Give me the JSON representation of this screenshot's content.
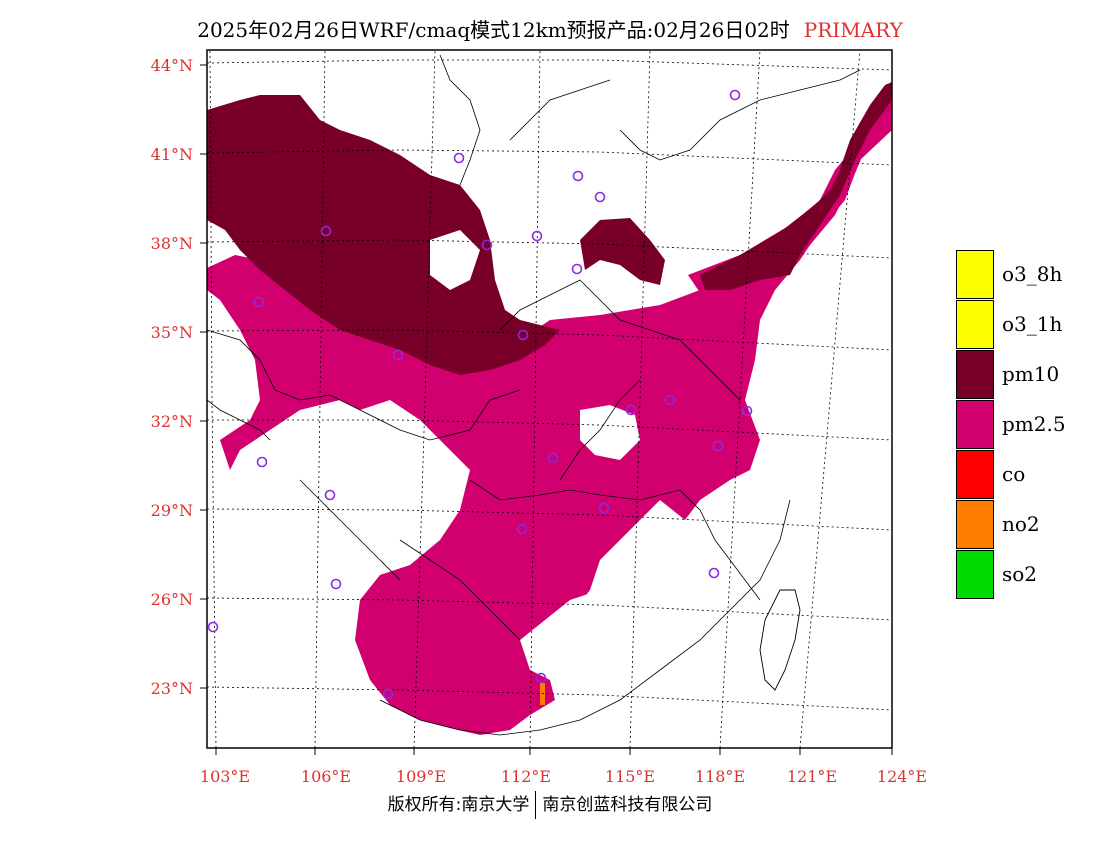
{
  "header": {
    "title": "2025年02月26日WRF/cmaq模式12km预报产品:02月26日02时",
    "tag": "PRIMARY"
  },
  "axes": {
    "lat_labels": [
      "44°N",
      "41°N",
      "38°N",
      "35°N",
      "32°N",
      "29°N",
      "26°N",
      "23°N"
    ],
    "lon_labels": [
      "103°E",
      "106°E",
      "109°E",
      "112°E",
      "115°E",
      "118°E",
      "121°E",
      "124°E"
    ]
  },
  "legend": {
    "items": [
      {
        "label": "o3_8h",
        "color": "#ffff00"
      },
      {
        "label": "o3_1h",
        "color": "#ffff00"
      },
      {
        "label": "pm10",
        "color": "#780028"
      },
      {
        "label": "pm2.5",
        "color": "#d2006e"
      },
      {
        "label": "co",
        "color": "#ff0000"
      },
      {
        "label": "no2",
        "color": "#ff7d00"
      },
      {
        "label": "so2",
        "color": "#00dc00"
      }
    ]
  },
  "footer": {
    "org_left": "版权所有:南京大学",
    "org_right": "南京创蓝科技有限公司"
  },
  "colors": {
    "pm10": "#780028",
    "pm25": "#d2006e",
    "no2": "#ff7d00",
    "station": "#8a2be2",
    "label": "#e03030"
  }
}
